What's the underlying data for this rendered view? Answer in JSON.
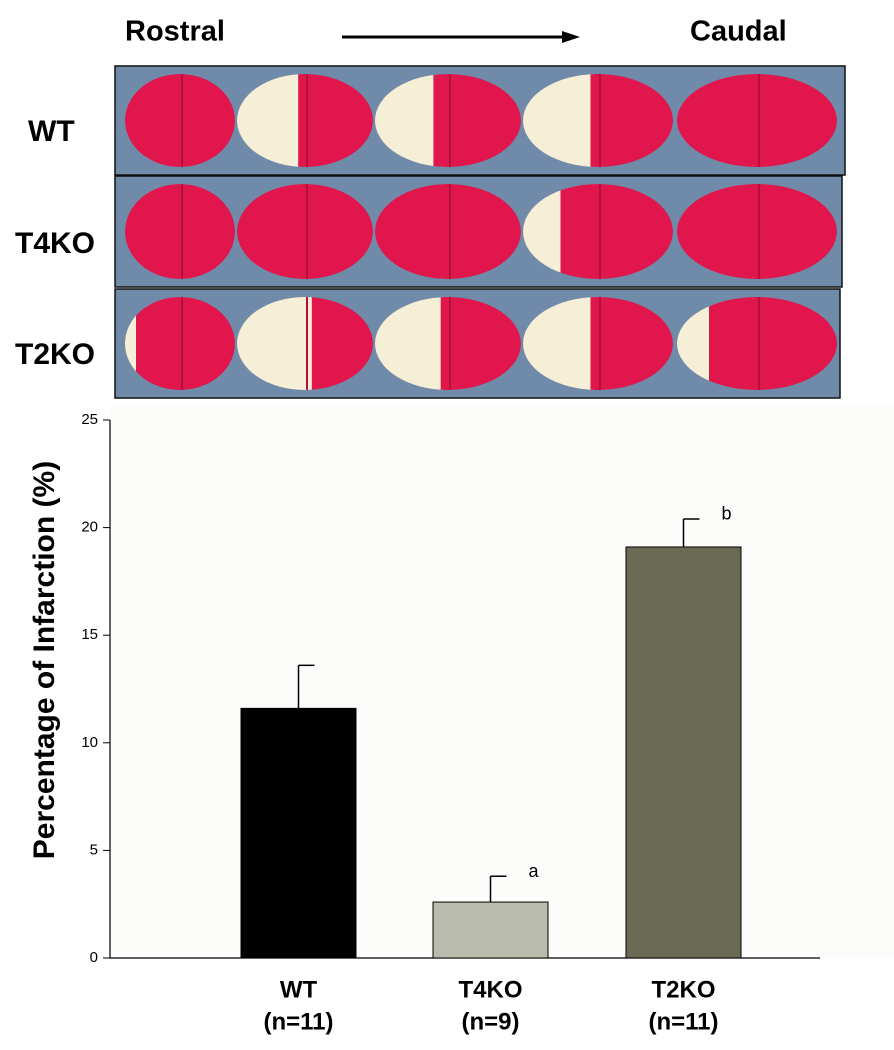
{
  "panel": {
    "left_label": "Rostral",
    "right_label": "Caudal",
    "rows": [
      "WT",
      "T4KO",
      "T2KO"
    ]
  },
  "chart_data": {
    "type": "bar",
    "y_label": "Percentage of Infarction (%)",
    "categories": [
      "WT",
      "T4KO",
      "T2KO"
    ],
    "sample_sizes": [
      "(n=11)",
      "(n=9)",
      "(n=11)"
    ],
    "values": [
      11.6,
      2.6,
      19.1
    ],
    "errors": [
      2.0,
      1.2,
      1.3
    ],
    "colors": [
      "#000000",
      "#b9bcad",
      "#6b6b55"
    ],
    "annotations": [
      {
        "category": "T4KO",
        "text": "a"
      },
      {
        "category": "T2KO",
        "text": "b"
      }
    ],
    "ylim": [
      0,
      25
    ],
    "yticks": [
      0,
      5,
      10,
      15,
      20,
      25
    ],
    "grid": false
  }
}
